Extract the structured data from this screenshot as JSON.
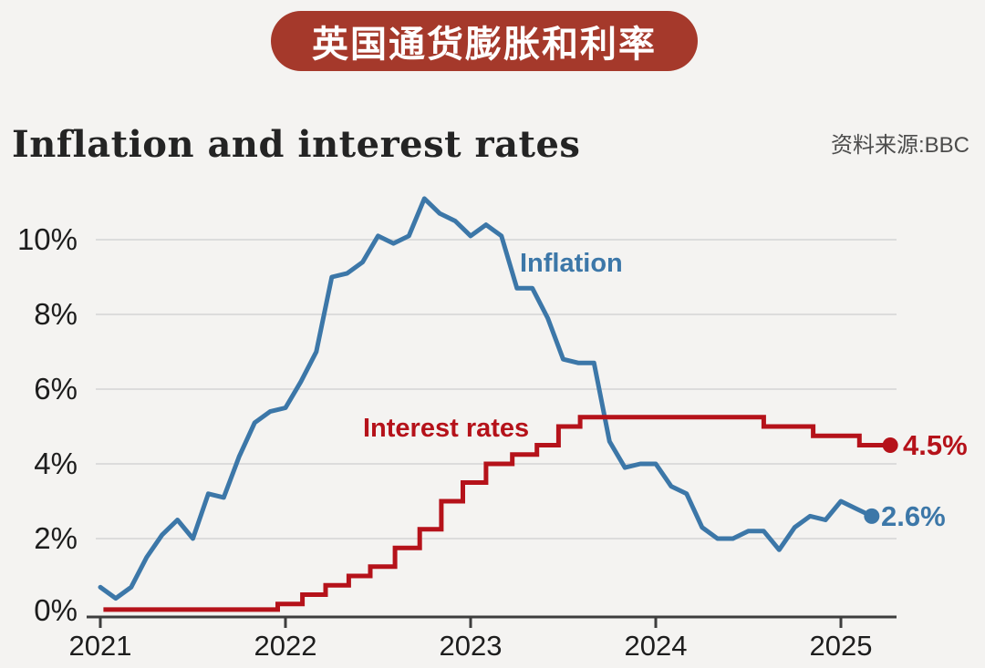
{
  "banner": {
    "text": "英国通货膨胀和利率"
  },
  "header": {
    "title": "Inflation and interest rates",
    "source": "资料来源:BBC"
  },
  "colors": {
    "background": "#f4f3f1",
    "banner_bg": "#a5392b",
    "inflation_blue": "#3c77a8",
    "rates_red": "#b5121a",
    "gridline": "#dcdcdc",
    "axis": "#3d3d3d"
  },
  "chart_data": {
    "type": "line",
    "title": "Inflation and interest rates",
    "source": "资料来源:BBC",
    "grid": true,
    "legend": "inline-labels",
    "x_axis": {
      "tick_labels": [
        "2021",
        "2022",
        "2023",
        "2024",
        "2025"
      ],
      "start": "2021-01",
      "end": "2025-04",
      "unit": "month"
    },
    "y_axis": {
      "tick_labels": [
        "0%",
        "2%",
        "4%",
        "6%",
        "8%",
        "10%"
      ],
      "ticks": [
        0,
        2,
        4,
        6,
        8,
        10
      ],
      "range": [
        0,
        11.6
      ],
      "unit": "percent"
    },
    "series": [
      {
        "name": "Inflation",
        "type": "line",
        "color": "#3c77a8",
        "end_label": "2.6%",
        "start": "2021-01",
        "interval": "monthly",
        "values": [
          0.7,
          0.4,
          0.7,
          1.5,
          2.1,
          2.5,
          2.0,
          3.2,
          3.1,
          4.2,
          5.1,
          5.4,
          5.5,
          6.2,
          7.0,
          9.0,
          9.1,
          9.4,
          10.1,
          9.9,
          10.1,
          11.1,
          10.7,
          10.5,
          10.1,
          10.4,
          10.1,
          8.7,
          8.7,
          7.9,
          6.8,
          6.7,
          6.7,
          4.6,
          3.9,
          4.0,
          4.0,
          3.4,
          3.2,
          2.3,
          2.0,
          2.0,
          2.2,
          2.2,
          1.7,
          2.3,
          2.6,
          2.5,
          3.0,
          2.8,
          2.6
        ]
      },
      {
        "name": "Interest rates",
        "type": "step",
        "color": "#b5121a",
        "end_label": "4.5%",
        "changes_unit": "[months since 2021-01, rate %]",
        "changes": [
          [
            0.2,
            0.1
          ],
          [
            11.5,
            0.25
          ],
          [
            13.1,
            0.5
          ],
          [
            14.6,
            0.75
          ],
          [
            16.1,
            1.0
          ],
          [
            17.5,
            1.25
          ],
          [
            19.1,
            1.75
          ],
          [
            20.7,
            2.25
          ],
          [
            22.1,
            3.0
          ],
          [
            23.5,
            3.5
          ],
          [
            25.0,
            4.0
          ],
          [
            26.7,
            4.25
          ],
          [
            28.3,
            4.5
          ],
          [
            29.7,
            5.0
          ],
          [
            31.1,
            5.25
          ],
          [
            43.0,
            5.0
          ],
          [
            46.2,
            4.75
          ],
          [
            49.2,
            4.5
          ]
        ],
        "end_month": 51.2
      }
    ]
  }
}
